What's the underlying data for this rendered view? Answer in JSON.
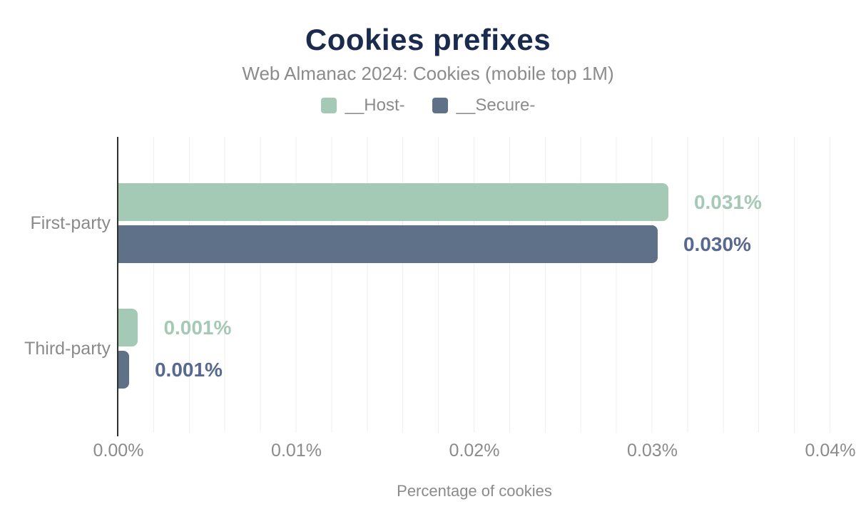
{
  "chart_data": {
    "type": "bar",
    "orientation": "horizontal",
    "title": "Cookies prefixes",
    "subtitle": "Web Almanac 2024: Cookies (mobile top 1M)",
    "categories": [
      "First-party",
      "Third-party"
    ],
    "series": [
      {
        "name": "__Host-",
        "color": "#a4c9b5",
        "label_color": "#a4c9b5",
        "values": [
          0.031,
          0.001
        ],
        "values_precise": [
          0.0309,
          0.0011
        ],
        "labels": [
          "0.031%",
          "0.001%"
        ]
      },
      {
        "name": "__Secure-",
        "color": "#5e7189",
        "label_color": "#58698f",
        "values": [
          0.03,
          0.001
        ],
        "values_precise": [
          0.0303,
          0.0006
        ],
        "labels": [
          "0.030%",
          "0.001%"
        ]
      }
    ],
    "xlabel": "Percentage of cookies",
    "xlim": [
      0,
      0.04
    ],
    "xticks": [
      "0.00%",
      "0.01%",
      "0.02%",
      "0.03%",
      "0.04%"
    ],
    "grid": "vertical gridlines every 0.002%, no horizontal gridlines",
    "legend_position": "top center"
  },
  "colors": {
    "title": "#1b2b4d",
    "muted_text": "#8b8b8b",
    "axis_line": "#303030",
    "gridline": "#efeff2",
    "background": "#ffffff"
  }
}
